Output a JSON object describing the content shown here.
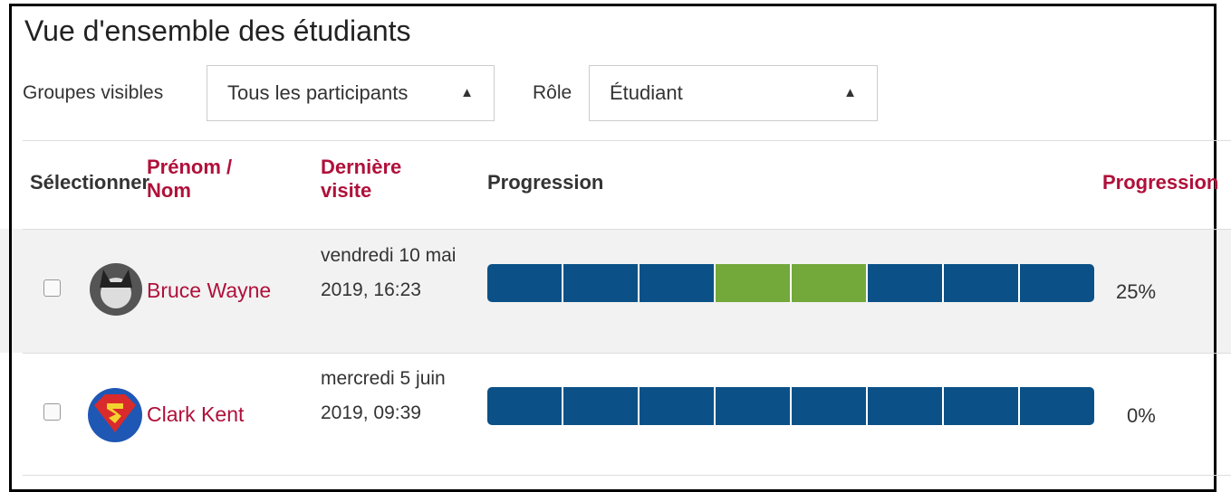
{
  "header": {
    "title": "Vue d'ensemble des étudiants"
  },
  "filters": [
    {
      "label": "Groupes visibles",
      "value": "Tous les participants"
    },
    {
      "label": "Rôle",
      "value": "Étudiant"
    }
  ],
  "table": {
    "columns": [
      "Sélectionner",
      "Prénom / Nom",
      "Dernière visite",
      "Progression",
      "Progression"
    ],
    "rows": [
      {
        "name": "Bruce Wayne",
        "last_visit": "vendredi 10 mai 2019, 16:23",
        "segments": [
          "#0b5187",
          "#0b5187",
          "#0b5187",
          "#73a83b",
          "#73a83b",
          "#0b5187",
          "#0b5187",
          "#0b5187"
        ],
        "percent": "25%"
      },
      {
        "name": "Clark Kent",
        "last_visit": "mercredi 5 juin 2019, 09:39",
        "segments": [
          "#0b5187",
          "#0b5187",
          "#0b5187",
          "#0b5187",
          "#0b5187",
          "#0b5187",
          "#0b5187",
          "#0b5187"
        ],
        "percent": "0%"
      }
    ]
  }
}
